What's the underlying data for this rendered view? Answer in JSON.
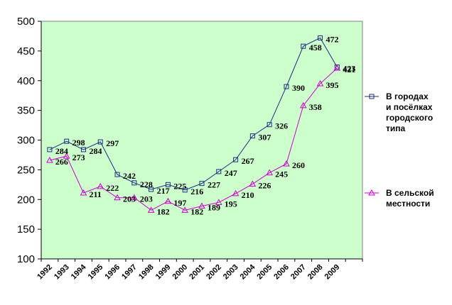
{
  "chart_data": {
    "type": "line",
    "title": "",
    "xlabel": "",
    "ylabel": "",
    "ylim": [
      100,
      500
    ],
    "yticks": [
      100,
      150,
      200,
      250,
      300,
      350,
      400,
      450,
      500
    ],
    "grid": false,
    "legend_placement": "right",
    "background_color": "#ccffcc",
    "categories": [
      "1992",
      "1993",
      "1994",
      "1995",
      "1996",
      "1997",
      "1998",
      "1999",
      "2000",
      "2001",
      "2002",
      "2003",
      "2004",
      "2005",
      "2006",
      "2007",
      "2008",
      "2009"
    ],
    "series": [
      {
        "name_lines": [
          "В городах",
          "и посёлках",
          "городского",
          "типа"
        ],
        "color": "#1f2c80",
        "marker": "square",
        "values": [
          284,
          298,
          284,
          297,
          242,
          228,
          217,
          225,
          216,
          227,
          247,
          267,
          307,
          326,
          390,
          458,
          472,
          423
        ],
        "point_labels": [
          "284",
          "298",
          "284",
          "297",
          "242",
          "228",
          "217",
          "225",
          "216",
          "227",
          "247",
          "267",
          "307",
          "326",
          "390",
          "458",
          "472",
          "423"
        ]
      },
      {
        "name_lines": [
          "В сельской",
          "местности"
        ],
        "color": "#cc00cc",
        "marker": "triangle",
        "values": [
          266,
          273,
          211,
          222,
          203,
          203,
          182,
          197,
          182,
          189,
          195,
          210,
          226,
          245,
          260,
          358,
          395,
          421
        ],
        "point_labels": [
          "266",
          "273",
          "211",
          "222",
          "203",
          "203",
          "182",
          "197",
          "182",
          "189",
          "195",
          "210",
          "226",
          "245",
          "260",
          "358",
          "395",
          "421"
        ]
      }
    ]
  }
}
